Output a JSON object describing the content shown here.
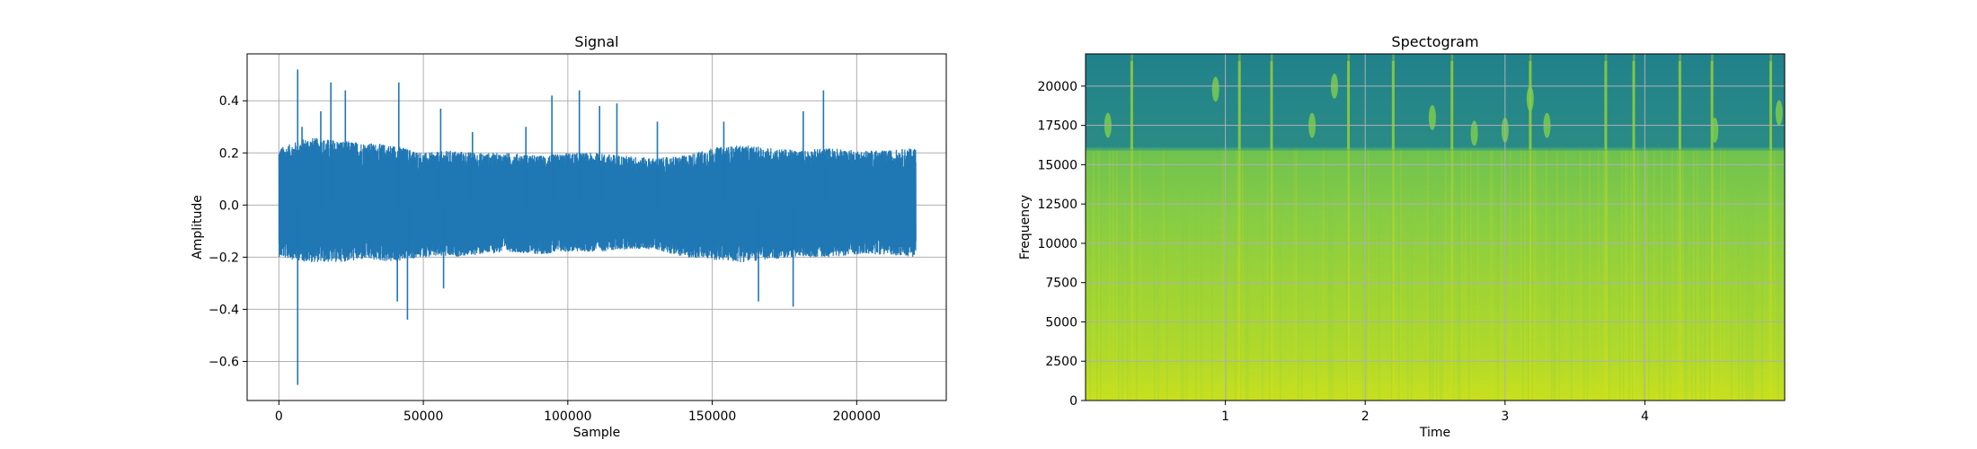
{
  "chart_data": [
    {
      "type": "line",
      "title": "Signal",
      "xlabel": "Sample",
      "ylabel": "Amplitude",
      "xlim": [
        -11000,
        231000
      ],
      "ylim": [
        -0.75,
        0.58
      ],
      "xticks": [
        0,
        50000,
        100000,
        150000,
        200000
      ],
      "xtick_labels": [
        "0",
        "50000",
        "100000",
        "150000",
        "200000"
      ],
      "yticks": [
        -0.6,
        -0.4,
        -0.2,
        0.0,
        0.2,
        0.4
      ],
      "ytick_labels": [
        "−0.6",
        "−0.4",
        "−0.2",
        "0.0",
        "0.2",
        "0.4"
      ],
      "grid": true,
      "color": "#1f77b4",
      "series": [
        {
          "x_range": [
            0,
            220500
          ],
          "envelope_x": [
            0,
            10000,
            20000,
            30000,
            40000,
            50000,
            60000,
            70000,
            80000,
            90000,
            100000,
            110000,
            120000,
            130000,
            140000,
            150000,
            160000,
            170000,
            180000,
            190000,
            200000,
            210000,
            220500
          ],
          "envelope_upper": [
            0.22,
            0.26,
            0.25,
            0.24,
            0.23,
            0.2,
            0.21,
            0.2,
            0.2,
            0.19,
            0.2,
            0.2,
            0.19,
            0.18,
            0.19,
            0.22,
            0.23,
            0.22,
            0.21,
            0.22,
            0.21,
            0.21,
            0.22
          ],
          "envelope_lower": [
            -0.2,
            -0.22,
            -0.22,
            -0.21,
            -0.22,
            -0.2,
            -0.2,
            -0.19,
            -0.18,
            -0.19,
            -0.18,
            -0.18,
            -0.17,
            -0.17,
            -0.2,
            -0.21,
            -0.22,
            -0.21,
            -0.2,
            -0.2,
            -0.19,
            -0.19,
            -0.2
          ],
          "spikes": [
            {
              "x": 6500,
              "y": 0.52
            },
            {
              "x": 6500,
              "y": -0.69
            },
            {
              "x": 8000,
              "y": 0.3
            },
            {
              "x": 14500,
              "y": 0.36
            },
            {
              "x": 18000,
              "y": 0.47
            },
            {
              "x": 23000,
              "y": 0.44
            },
            {
              "x": 41000,
              "y": -0.37
            },
            {
              "x": 41500,
              "y": 0.47
            },
            {
              "x": 44500,
              "y": -0.44
            },
            {
              "x": 56000,
              "y": 0.37
            },
            {
              "x": 57000,
              "y": -0.32
            },
            {
              "x": 67000,
              "y": 0.28
            },
            {
              "x": 85500,
              "y": 0.3
            },
            {
              "x": 94500,
              "y": 0.42
            },
            {
              "x": 104000,
              "y": 0.44
            },
            {
              "x": 111000,
              "y": 0.38
            },
            {
              "x": 117000,
              "y": 0.39
            },
            {
              "x": 131000,
              "y": 0.32
            },
            {
              "x": 154000,
              "y": 0.32
            },
            {
              "x": 166000,
              "y": -0.37
            },
            {
              "x": 178000,
              "y": -0.39
            },
            {
              "x": 181500,
              "y": 0.36
            },
            {
              "x": 188500,
              "y": 0.44
            }
          ]
        }
      ]
    },
    {
      "type": "heatmap",
      "title": "Spectogram",
      "xlabel": "Time",
      "ylabel": "Frequency",
      "xlim": [
        0,
        5.0
      ],
      "ylim": [
        0,
        22050
      ],
      "xticks": [
        1,
        2,
        3,
        4
      ],
      "xtick_labels": [
        "1",
        "2",
        "3",
        "4"
      ],
      "yticks": [
        0,
        2500,
        5000,
        7500,
        10000,
        12500,
        15000,
        17500,
        20000
      ],
      "ytick_labels": [
        "0",
        "2500",
        "5000",
        "7500",
        "10000",
        "12500",
        "15000",
        "17500",
        "20000"
      ],
      "grid": true,
      "colormap": "viridis",
      "cutoff_frequency": 16000,
      "band_colors": [
        {
          "freq": 0,
          "color": "#c8e01e"
        },
        {
          "freq": 2500,
          "color": "#b3da2a"
        },
        {
          "freq": 7000,
          "color": "#9fd434"
        },
        {
          "freq": 12000,
          "color": "#86cc45"
        },
        {
          "freq": 15900,
          "color": "#6fc24f"
        },
        {
          "freq": 16100,
          "color": "#2a8b86"
        },
        {
          "freq": 22050,
          "color": "#21818b"
        }
      ],
      "transient_times": [
        0.33,
        1.1,
        1.33,
        1.88,
        2.2,
        2.62,
        3.18,
        3.72,
        3.92,
        4.25,
        4.48,
        4.9
      ],
      "burst_events": [
        {
          "t": 0.16,
          "f": 17500
        },
        {
          "t": 0.93,
          "f": 19800
        },
        {
          "t": 1.62,
          "f": 17500
        },
        {
          "t": 1.78,
          "f": 20000
        },
        {
          "t": 2.48,
          "f": 18000
        },
        {
          "t": 2.78,
          "f": 17000
        },
        {
          "t": 3.0,
          "f": 17200
        },
        {
          "t": 3.18,
          "f": 19200
        },
        {
          "t": 3.3,
          "f": 17500
        },
        {
          "t": 4.5,
          "f": 17200
        },
        {
          "t": 4.96,
          "f": 18300
        }
      ]
    }
  ]
}
